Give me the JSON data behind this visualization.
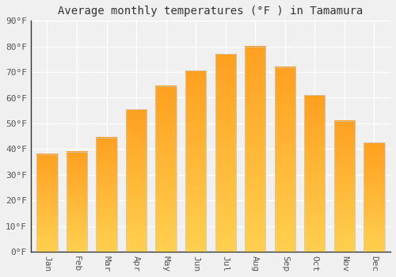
{
  "title": "Average monthly temperatures (°F ) in Tamamura",
  "months": [
    "Jan",
    "Feb",
    "Mar",
    "Apr",
    "May",
    "Jun",
    "Jul",
    "Aug",
    "Sep",
    "Oct",
    "Nov",
    "Dec"
  ],
  "values": [
    38,
    39,
    44.5,
    55.5,
    64.5,
    70.5,
    77,
    80,
    72,
    61,
    51,
    42.5
  ],
  "bar_color_bottom": "#FFD050",
  "bar_color_top": "#FFA020",
  "bar_edge_color": "#cccccc",
  "ylim": [
    0,
    90
  ],
  "yticks": [
    0,
    10,
    20,
    30,
    40,
    50,
    60,
    70,
    80,
    90
  ],
  "ytick_labels": [
    "0°F",
    "10°F",
    "20°F",
    "30°F",
    "40°F",
    "50°F",
    "60°F",
    "70°F",
    "80°F",
    "90°F"
  ],
  "background_color": "#f0f0f0",
  "grid_color": "#ffffff",
  "title_fontsize": 10,
  "tick_fontsize": 8,
  "bar_width": 0.7
}
